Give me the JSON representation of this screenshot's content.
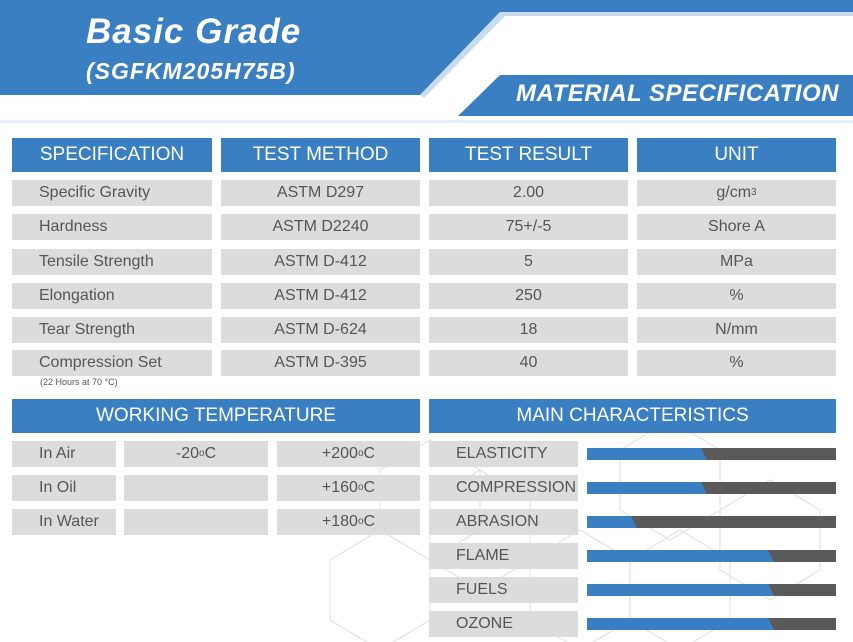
{
  "header": {
    "title": "Basic Grade",
    "subtitle": "(SGFKM205H75B)",
    "banner": "MATERIAL SPECIFICATION"
  },
  "spec_table": {
    "columns": [
      "SPECIFICATION",
      "TEST METHOD",
      "TEST RESULT",
      "UNIT"
    ],
    "rows": [
      {
        "spec": "Specific Gravity",
        "method": "ASTM D297",
        "result": "2.00",
        "unit": "g/cm",
        "unit_sup": "3"
      },
      {
        "spec": "Hardness",
        "method": "ASTM D2240",
        "result": "75+/-5",
        "unit": "Shore A"
      },
      {
        "spec": "Tensile Strength",
        "method": "ASTM D-412",
        "result": "5",
        "unit": "MPa"
      },
      {
        "spec": "Elongation",
        "method": "ASTM D-412",
        "result": "250",
        "unit": "%"
      },
      {
        "spec": "Tear Strength",
        "method": "ASTM D-624",
        "result": "18",
        "unit": "N/mm"
      },
      {
        "spec": "Compression Set",
        "method": "ASTM D-395",
        "result": "40",
        "unit": "%"
      }
    ],
    "compression_note": "(22 Hours at 70 °C)"
  },
  "working_temperature": {
    "title": "WORKING TEMPERATURE",
    "rows": [
      {
        "medium": "In Air",
        "min": "-20",
        "max": "+200"
      },
      {
        "medium": "In Oil",
        "min": "",
        "max": "+160"
      },
      {
        "medium": "In Water",
        "min": "",
        "max": "+180"
      }
    ],
    "degree_symbol": "o",
    "unit_c": "C"
  },
  "main_characteristics": {
    "title": "MAIN CHARACTERISTICS",
    "items": [
      {
        "name": "ELASTICITY",
        "level": 0.48
      },
      {
        "name": "COMPRESSION",
        "level": 0.48
      },
      {
        "name": "ABRASION",
        "level": 0.2
      },
      {
        "name": "FLAME",
        "level": 0.75
      },
      {
        "name": "FUELS",
        "level": 0.75
      },
      {
        "name": "OZONE",
        "level": 0.75
      }
    ]
  },
  "colors": {
    "accent_blue": "#3a7fc2",
    "cell_gray": "#dcdcdc",
    "bar_dark": "#5a5a5a"
  }
}
